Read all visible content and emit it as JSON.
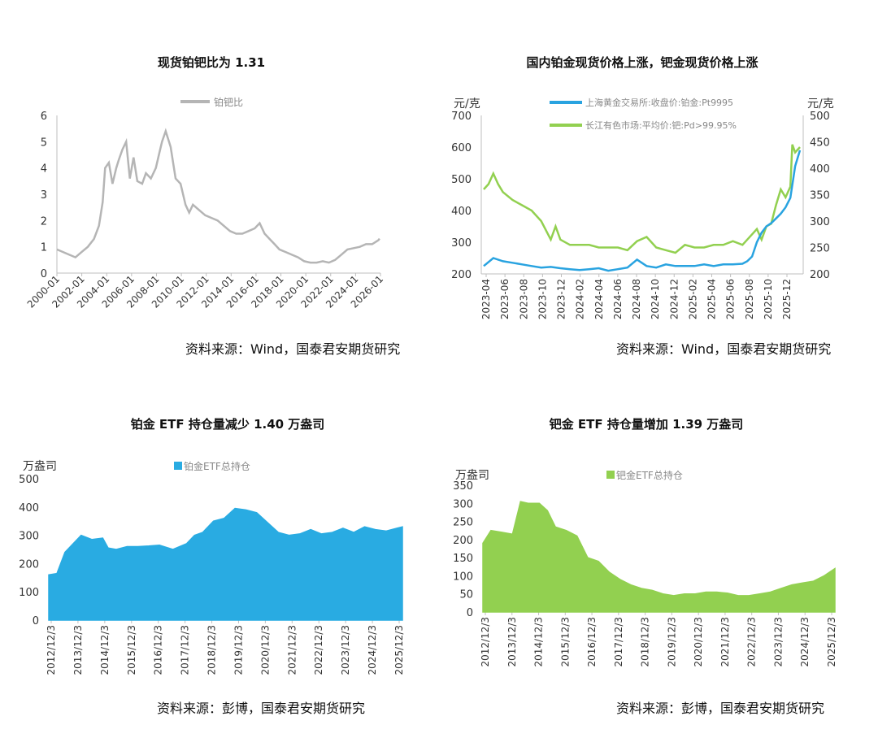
{
  "chart_data": [
    {
      "type": "line",
      "title": "现货铂钯比为 1.31",
      "legend": [
        "铂钯比"
      ],
      "legend_position": "top",
      "colors": {
        "series": "#b5b5b5"
      },
      "grid": false,
      "x_tick_labels": [
        "2000-01",
        "2002-01",
        "2004-01",
        "2006-01",
        "2008-01",
        "2010-01",
        "2012-01",
        "2014-01",
        "2016-01",
        "2018-01",
        "2020-01",
        "2022-01",
        "2024-01",
        "2026-01"
      ],
      "y_tick_labels": [
        "0",
        "1",
        "2",
        "3",
        "4",
        "5",
        "6"
      ],
      "xlim": [
        2000.0,
        2026.17
      ],
      "ylim": [
        0,
        6
      ],
      "series": [
        {
          "name": "铂钯比",
          "x": [
            2000.0,
            2000.5,
            2001.0,
            2001.5,
            2002.0,
            2002.5,
            2003.0,
            2003.4,
            2003.7,
            2003.9,
            2004.2,
            2004.5,
            2004.8,
            2005.0,
            2005.3,
            2005.6,
            2005.9,
            2006.2,
            2006.5,
            2006.9,
            2007.2,
            2007.6,
            2008.0,
            2008.3,
            2008.5,
            2008.8,
            2009.2,
            2009.6,
            2010.0,
            2010.4,
            2010.7,
            2011.0,
            2011.5,
            2012.0,
            2012.5,
            2013.0,
            2013.5,
            2014.0,
            2014.5,
            2015.0,
            2015.5,
            2016.0,
            2016.4,
            2016.8,
            2017.2,
            2017.6,
            2018.0,
            2018.5,
            2019.0,
            2019.5,
            2020.0,
            2020.5,
            2021.0,
            2021.5,
            2022.0,
            2022.5,
            2023.0,
            2023.5,
            2024.0,
            2024.5,
            2025.0,
            2025.5,
            2026.0,
            2026.1
          ],
          "y": [
            0.9,
            0.8,
            0.7,
            0.6,
            0.8,
            1.0,
            1.3,
            1.8,
            2.7,
            4.0,
            4.2,
            3.4,
            4.0,
            4.3,
            4.7,
            5.0,
            3.6,
            4.4,
            3.5,
            3.4,
            3.8,
            3.6,
            4.0,
            4.6,
            5.0,
            5.4,
            4.8,
            3.6,
            3.4,
            2.6,
            2.3,
            2.6,
            2.4,
            2.2,
            2.1,
            2.0,
            1.8,
            1.6,
            1.5,
            1.5,
            1.6,
            1.7,
            1.9,
            1.5,
            1.3,
            1.1,
            0.9,
            0.8,
            0.7,
            0.6,
            0.45,
            0.4,
            0.4,
            0.45,
            0.4,
            0.5,
            0.7,
            0.9,
            0.95,
            1.0,
            1.1,
            1.1,
            1.25,
            1.31
          ]
        }
      ]
    },
    {
      "type": "line",
      "title": "国内铂金现货价格上涨，钯金现货价格上涨",
      "y_left_unit": "元/克",
      "y_right_unit": "元/克",
      "legend": [
        "上海黄金交易所:收盘价:铂金:Pt9995",
        "长江有色市场:平均价:钯:Pd>99.95%"
      ],
      "legend_position": "top",
      "colors": {
        "pt": "#29a3e0",
        "pd": "#92d050"
      },
      "grid": false,
      "x_tick_labels": [
        "2023-04",
        "2023-06",
        "2023-08",
        "2023-10",
        "2023-12",
        "2024-02",
        "2024-04",
        "2024-06",
        "2024-08",
        "2024-10",
        "2024-12",
        "2025-02",
        "2025-04",
        "2025-06",
        "2025-08",
        "2025-10",
        "2025-12"
      ],
      "y_left_tick_labels": [
        "200",
        "300",
        "400",
        "500",
        "600",
        "700"
      ],
      "y_right_tick_labels": [
        "200",
        "250",
        "300",
        "350",
        "400",
        "450",
        "500"
      ],
      "xlim": [
        0,
        33
      ],
      "ylim_left": [
        200,
        700
      ],
      "ylim_right": [
        200,
        500
      ],
      "series": [
        {
          "name": "上海黄金交易所:收盘价:铂金:Pt9995",
          "axis": "left",
          "x": [
            0,
            1,
            2,
            3,
            4,
            5,
            6,
            7,
            8,
            9,
            10,
            11,
            12,
            13,
            14,
            15,
            16,
            17,
            18,
            19,
            20,
            21,
            22,
            23,
            24,
            25,
            26,
            27,
            27.5,
            28,
            28.5,
            29,
            29.5,
            30,
            30.5,
            31,
            31.5,
            32,
            32.5,
            33
          ],
          "y": [
            225,
            250,
            240,
            235,
            230,
            225,
            220,
            222,
            218,
            215,
            212,
            215,
            218,
            210,
            215,
            220,
            245,
            225,
            220,
            230,
            225,
            225,
            225,
            230,
            225,
            230,
            230,
            232,
            240,
            255,
            300,
            330,
            350,
            360,
            375,
            390,
            410,
            440,
            540,
            590
          ]
        },
        {
          "name": "长江有色市场:平均价:钯:Pd>99.95%",
          "axis": "right",
          "x": [
            0,
            0.5,
            1,
            1.5,
            2,
            3,
            4,
            5,
            6,
            7,
            7.5,
            8,
            9,
            10,
            11,
            12,
            13,
            14,
            15,
            16,
            17,
            18,
            19,
            20,
            21,
            22,
            23,
            24,
            25,
            26,
            27,
            28,
            28.5,
            29,
            29.5,
            30,
            30.5,
            31,
            31.5,
            32,
            32.2,
            32.5,
            33
          ],
          "y": [
            360,
            370,
            390,
            370,
            355,
            340,
            330,
            320,
            300,
            265,
            290,
            265,
            255,
            255,
            255,
            250,
            250,
            250,
            245,
            262,
            270,
            250,
            245,
            240,
            255,
            250,
            250,
            255,
            255,
            262,
            255,
            275,
            285,
            265,
            290,
            295,
            330,
            360,
            345,
            365,
            445,
            430,
            440
          ]
        }
      ]
    },
    {
      "type": "area",
      "title": "铂金 ETF 持仓量减少 1.40 万盎司",
      "y_unit": "万盎司",
      "legend": [
        "铂金ETF总持仓"
      ],
      "legend_position": "top",
      "colors": {
        "series": "#29abe2"
      },
      "grid": false,
      "x_tick_labels": [
        "2012/12/3",
        "2013/12/3",
        "2014/12/3",
        "2015/12/3",
        "2016/12/3",
        "2017/12/3",
        "2018/12/3",
        "2019/12/3",
        "2020/12/3",
        "2021/12/3",
        "2022/12/3",
        "2023/12/3",
        "2024/12/3",
        "2025/12/3"
      ],
      "y_tick_labels": [
        "0",
        "100",
        "200",
        "300",
        "400",
        "500"
      ],
      "xlim": [
        2012.9,
        2026.0
      ],
      "ylim": [
        0,
        500
      ],
      "series": [
        {
          "name": "铂金ETF总持仓",
          "x": [
            2012.9,
            2013.2,
            2013.5,
            2013.8,
            2014.1,
            2014.5,
            2014.9,
            2015.1,
            2015.4,
            2015.8,
            2016.2,
            2016.6,
            2017.0,
            2017.5,
            2018.0,
            2018.3,
            2018.6,
            2019.0,
            2019.4,
            2019.8,
            2020.2,
            2020.6,
            2021.0,
            2021.4,
            2021.8,
            2022.2,
            2022.6,
            2023.0,
            2023.4,
            2023.8,
            2024.2,
            2024.6,
            2025.0,
            2025.4,
            2025.8,
            2026.0
          ],
          "y": [
            160,
            165,
            240,
            270,
            300,
            285,
            290,
            255,
            250,
            260,
            260,
            262,
            265,
            250,
            270,
            300,
            310,
            350,
            360,
            395,
            390,
            380,
            345,
            310,
            300,
            305,
            320,
            305,
            310,
            325,
            310,
            330,
            320,
            315,
            325,
            330
          ]
        }
      ]
    },
    {
      "type": "area",
      "title": "钯金 ETF 持仓量增加 1.39 万盎司",
      "y_unit": "万盎司",
      "legend": [
        "钯金ETF总持仓"
      ],
      "legend_position": "top",
      "colors": {
        "series": "#92d050"
      },
      "grid": false,
      "x_tick_labels": [
        "2012/12/3",
        "2013/12/3",
        "2014/12/3",
        "2015/12/3",
        "2016/12/3",
        "2017/12/3",
        "2018/12/3",
        "2019/12/3",
        "2020/12/3",
        "2021/12/3",
        "2022/12/3",
        "2023/12/3",
        "2024/12/3",
        "2025/12/3"
      ],
      "y_tick_labels": [
        "0",
        "50",
        "100",
        "150",
        "200",
        "250",
        "300",
        "350"
      ],
      "xlim": [
        2012.9,
        2026.0
      ],
      "ylim": [
        0,
        350
      ],
      "series": [
        {
          "name": "钯金ETF总持仓",
          "x": [
            2012.9,
            2013.2,
            2013.6,
            2014.0,
            2014.3,
            2014.6,
            2015.0,
            2015.3,
            2015.6,
            2016.0,
            2016.4,
            2016.8,
            2017.2,
            2017.6,
            2018.0,
            2018.4,
            2018.8,
            2019.2,
            2019.6,
            2020.0,
            2020.4,
            2020.8,
            2021.2,
            2021.6,
            2022.0,
            2022.4,
            2022.8,
            2023.2,
            2023.6,
            2024.0,
            2024.4,
            2024.8,
            2025.2,
            2025.6,
            2026.0
          ],
          "y": [
            190,
            225,
            220,
            215,
            305,
            300,
            300,
            280,
            235,
            225,
            210,
            150,
            140,
            110,
            90,
            75,
            65,
            60,
            50,
            45,
            50,
            50,
            55,
            55,
            52,
            45,
            45,
            50,
            55,
            65,
            75,
            80,
            85,
            100,
            120
          ]
        }
      ]
    }
  ],
  "sources": [
    "资料来源：Wind，国泰君安期货研究",
    "资料来源：Wind，国泰君安期货研究",
    "资料来源：彭博，国泰君安期货研究",
    "资料来源：彭博，国泰君安期货研究"
  ]
}
